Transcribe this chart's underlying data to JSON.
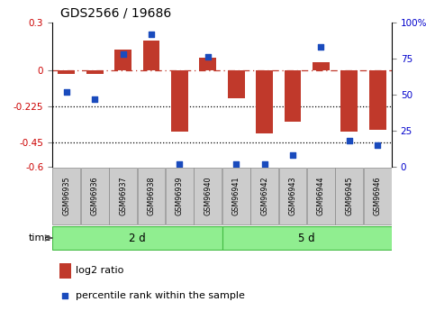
{
  "title": "GDS2566 / 19686",
  "samples": [
    "GSM96935",
    "GSM96936",
    "GSM96937",
    "GSM96938",
    "GSM96939",
    "GSM96940",
    "GSM96941",
    "GSM96942",
    "GSM96943",
    "GSM96944",
    "GSM96945",
    "GSM96946"
  ],
  "log2_ratio": [
    -0.02,
    -0.02,
    0.13,
    0.19,
    -0.38,
    0.08,
    -0.17,
    -0.39,
    -0.32,
    0.05,
    -0.38,
    -0.37
  ],
  "percentile_rank": [
    52,
    47,
    78,
    92,
    2,
    76,
    2,
    2,
    8,
    83,
    18,
    15
  ],
  "bar_color": "#c0392b",
  "dot_color": "#1a4bbd",
  "groups": [
    {
      "label": "2 d",
      "start": 0,
      "end": 6
    },
    {
      "label": "5 d",
      "start": 6,
      "end": 12
    }
  ],
  "ylim": [
    -0.6,
    0.3
  ],
  "yticks_left": [
    0.3,
    0.0,
    -0.225,
    -0.45,
    -0.6
  ],
  "ytick_labels_left": [
    "0.3",
    "0",
    "-0.225",
    "-0.45",
    "-0.6"
  ],
  "yticks_right_vals": [
    100,
    75,
    50,
    25,
    0
  ],
  "ytick_labels_right": [
    "100%",
    "75",
    "50",
    "25",
    "0"
  ],
  "hline_zero": 0.0,
  "hline1": -0.225,
  "hline2": -0.45,
  "bar_color_bg": "#cccccc",
  "group_color": "#90EE90",
  "group_edge_color": "#44bb44",
  "tick_color_left": "#cc0000",
  "tick_color_right": "#0000cc",
  "sample_box_color": "#cccccc",
  "sample_box_edge": "#888888"
}
